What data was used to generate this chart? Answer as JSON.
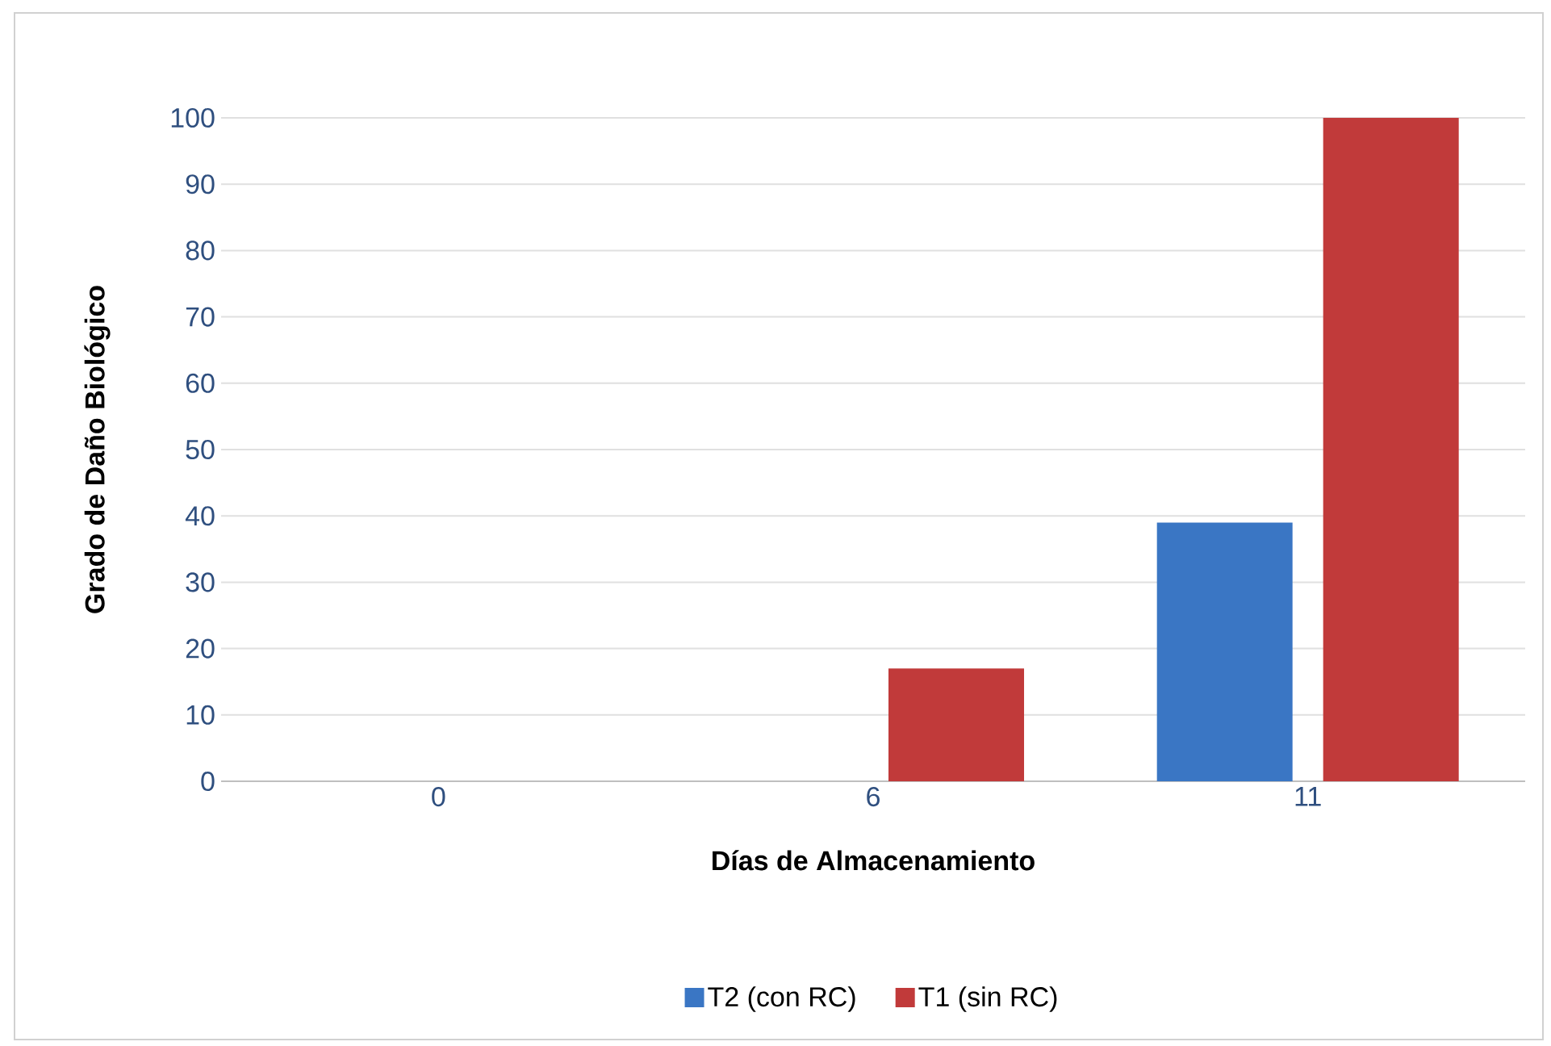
{
  "chart_data": {
    "type": "bar",
    "xlabel": "Días de Almacenamiento",
    "ylabel": "Grado de Daño Biológico",
    "categories": [
      "0",
      "6",
      "11"
    ],
    "series": [
      {
        "name": "T2 (con RC)",
        "color": "#3a76c4",
        "values": [
          0,
          0,
          39
        ]
      },
      {
        "name": "T1 (sin RC)",
        "color": "#c13a3a",
        "values": [
          0,
          17,
          100
        ]
      }
    ],
    "ylim": [
      0,
      100
    ],
    "yticks": [
      0,
      10,
      20,
      30,
      40,
      50,
      60,
      70,
      80,
      90,
      100
    ],
    "grid": "y",
    "legend": "bottom"
  }
}
